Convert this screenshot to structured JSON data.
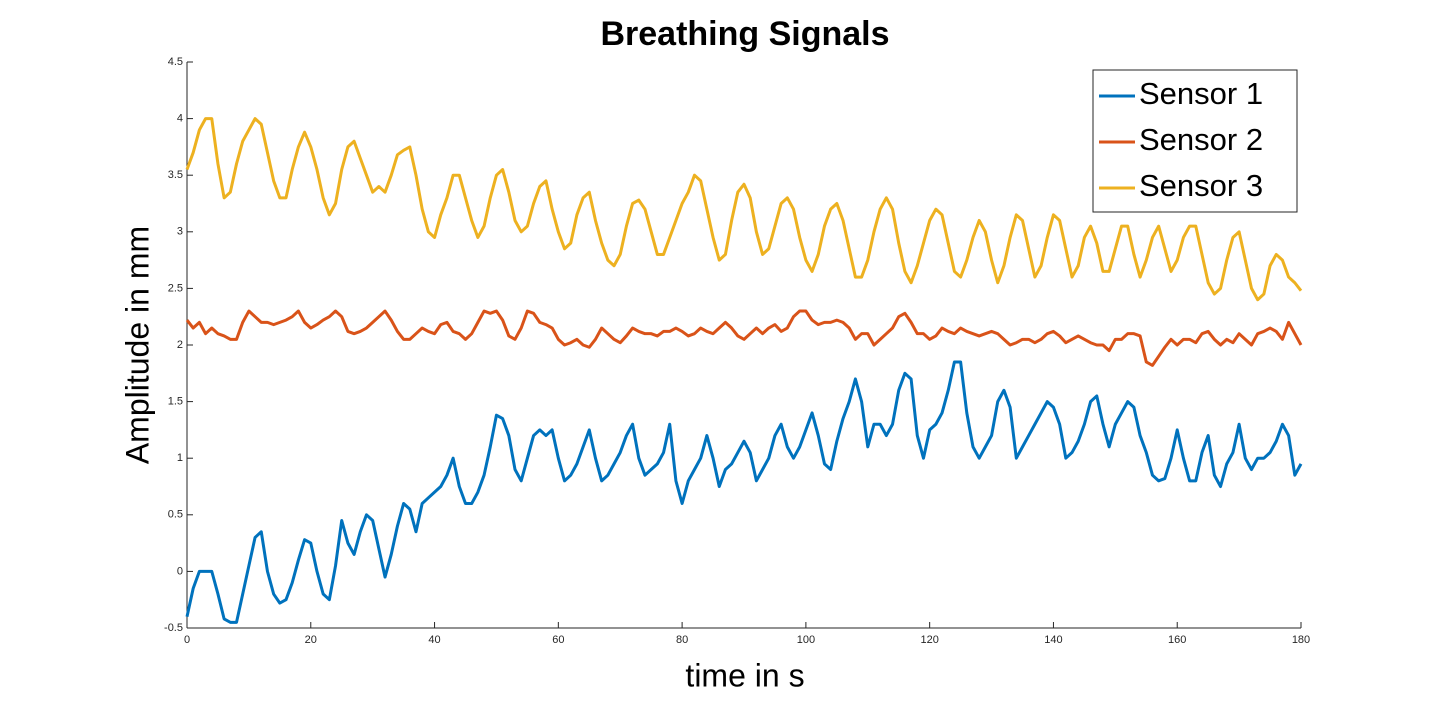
{
  "chart_data": {
    "type": "line",
    "title": "Breathing Signals",
    "x_label": "time in s",
    "y_label": "Amplitude in mm",
    "x": [
      0,
      1,
      2,
      3,
      4,
      5,
      6,
      7,
      8,
      9,
      10,
      11,
      12,
      13,
      14,
      15,
      16,
      17,
      18,
      19,
      20,
      21,
      22,
      23,
      24,
      25,
      26,
      27,
      28,
      29,
      30,
      31,
      32,
      33,
      34,
      35,
      36,
      37,
      38,
      39,
      40,
      41,
      42,
      43,
      44,
      45,
      46,
      47,
      48,
      49,
      50,
      51,
      52,
      53,
      54,
      55,
      56,
      57,
      58,
      59,
      60,
      61,
      62,
      63,
      64,
      65,
      66,
      67,
      68,
      69,
      70,
      71,
      72,
      73,
      74,
      75,
      76,
      77,
      78,
      79,
      80,
      81,
      82,
      83,
      84,
      85,
      86,
      87,
      88,
      89,
      90,
      91,
      92,
      93,
      94,
      95,
      96,
      97,
      98,
      99,
      100,
      101,
      102,
      103,
      104,
      105,
      106,
      107,
      108,
      109,
      110,
      111,
      112,
      113,
      114,
      115,
      116,
      117,
      118,
      119,
      120,
      121,
      122,
      123,
      124,
      125,
      126,
      127,
      128,
      129,
      130,
      131,
      132,
      133,
      134,
      135,
      136,
      137,
      138,
      139,
      140,
      141,
      142,
      143,
      144,
      145,
      146,
      147,
      148,
      149,
      150,
      151,
      152,
      153,
      154,
      155,
      156,
      157,
      158,
      159,
      160,
      161,
      162,
      163,
      164,
      165,
      166,
      167,
      168,
      169,
      170,
      171,
      172,
      173,
      174,
      175,
      176,
      177,
      178,
      179,
      180
    ],
    "series": [
      {
        "name": "Sensor 1",
        "color": "#0072bd",
        "values": [
          -0.4,
          -0.15,
          0.0,
          0.0,
          0.0,
          -0.2,
          -0.42,
          -0.45,
          -0.45,
          -0.2,
          0.05,
          0.3,
          0.35,
          0.0,
          -0.2,
          -0.28,
          -0.25,
          -0.1,
          0.1,
          0.28,
          0.25,
          0.0,
          -0.2,
          -0.25,
          0.05,
          0.45,
          0.25,
          0.15,
          0.35,
          0.5,
          0.45,
          0.2,
          -0.05,
          0.15,
          0.4,
          0.6,
          0.55,
          0.35,
          0.6,
          0.65,
          0.7,
          0.75,
          0.85,
          1.0,
          0.75,
          0.6,
          0.6,
          0.7,
          0.85,
          1.1,
          1.38,
          1.35,
          1.2,
          0.9,
          0.8,
          1.0,
          1.2,
          1.25,
          1.2,
          1.25,
          1.0,
          0.8,
          0.85,
          0.95,
          1.1,
          1.25,
          1.0,
          0.8,
          0.85,
          0.95,
          1.05,
          1.2,
          1.3,
          1.0,
          0.85,
          0.9,
          0.95,
          1.05,
          1.3,
          0.8,
          0.6,
          0.8,
          0.9,
          1.0,
          1.2,
          1.0,
          0.75,
          0.9,
          0.95,
          1.05,
          1.15,
          1.05,
          0.8,
          0.9,
          1.0,
          1.2,
          1.3,
          1.1,
          1.0,
          1.1,
          1.25,
          1.4,
          1.2,
          0.95,
          0.9,
          1.15,
          1.35,
          1.5,
          1.7,
          1.5,
          1.1,
          1.3,
          1.3,
          1.2,
          1.3,
          1.6,
          1.75,
          1.7,
          1.2,
          1.0,
          1.25,
          1.3,
          1.4,
          1.6,
          1.85,
          1.85,
          1.4,
          1.1,
          1.0,
          1.1,
          1.2,
          1.5,
          1.6,
          1.45,
          1.0,
          1.1,
          1.2,
          1.3,
          1.4,
          1.5,
          1.45,
          1.3,
          1.0,
          1.05,
          1.15,
          1.3,
          1.5,
          1.55,
          1.3,
          1.1,
          1.3,
          1.4,
          1.5,
          1.45,
          1.2,
          1.05,
          0.85,
          0.8,
          0.82,
          1.0,
          1.25,
          1.0,
          0.8,
          0.8,
          1.05,
          1.2,
          0.85,
          0.75,
          0.95,
          1.05,
          1.3,
          1.0,
          0.9,
          1.0,
          1.0,
          1.05,
          1.15,
          1.3,
          1.2,
          0.85,
          0.95
        ]
      },
      {
        "name": "Sensor 2",
        "color": "#d95319",
        "values": [
          2.22,
          2.15,
          2.2,
          2.1,
          2.15,
          2.1,
          2.08,
          2.05,
          2.05,
          2.2,
          2.3,
          2.25,
          2.2,
          2.2,
          2.18,
          2.2,
          2.22,
          2.25,
          2.3,
          2.2,
          2.15,
          2.18,
          2.22,
          2.25,
          2.3,
          2.25,
          2.12,
          2.1,
          2.12,
          2.15,
          2.2,
          2.25,
          2.3,
          2.22,
          2.12,
          2.05,
          2.05,
          2.1,
          2.15,
          2.12,
          2.1,
          2.18,
          2.2,
          2.12,
          2.1,
          2.05,
          2.1,
          2.2,
          2.3,
          2.28,
          2.3,
          2.22,
          2.08,
          2.05,
          2.15,
          2.3,
          2.28,
          2.2,
          2.18,
          2.15,
          2.05,
          2.0,
          2.02,
          2.05,
          2.0,
          1.98,
          2.05,
          2.15,
          2.1,
          2.05,
          2.02,
          2.08,
          2.15,
          2.12,
          2.1,
          2.1,
          2.08,
          2.12,
          2.12,
          2.15,
          2.12,
          2.08,
          2.1,
          2.15,
          2.12,
          2.1,
          2.15,
          2.2,
          2.15,
          2.08,
          2.05,
          2.1,
          2.15,
          2.1,
          2.15,
          2.18,
          2.12,
          2.15,
          2.25,
          2.3,
          2.3,
          2.22,
          2.18,
          2.2,
          2.2,
          2.22,
          2.2,
          2.15,
          2.05,
          2.1,
          2.1,
          2.0,
          2.05,
          2.1,
          2.15,
          2.25,
          2.28,
          2.2,
          2.1,
          2.1,
          2.05,
          2.08,
          2.15,
          2.12,
          2.1,
          2.15,
          2.12,
          2.1,
          2.08,
          2.1,
          2.12,
          2.1,
          2.05,
          2.0,
          2.02,
          2.05,
          2.05,
          2.02,
          2.05,
          2.1,
          2.12,
          2.08,
          2.02,
          2.05,
          2.08,
          2.05,
          2.02,
          2.0,
          2.0,
          1.95,
          2.05,
          2.05,
          2.1,
          2.1,
          2.08,
          1.85,
          1.82,
          1.9,
          1.98,
          2.05,
          2.0,
          2.05,
          2.05,
          2.02,
          2.1,
          2.12,
          2.05,
          2.0,
          2.05,
          2.02,
          2.1,
          2.05,
          2.0,
          2.1,
          2.12,
          2.15,
          2.12,
          2.05,
          2.2,
          2.1,
          2.0
        ]
      },
      {
        "name": "Sensor 3",
        "color": "#edb120",
        "values": [
          3.55,
          3.7,
          3.9,
          4.0,
          4.0,
          3.6,
          3.3,
          3.35,
          3.6,
          3.8,
          3.9,
          4.0,
          3.95,
          3.7,
          3.45,
          3.3,
          3.3,
          3.55,
          3.75,
          3.88,
          3.75,
          3.55,
          3.3,
          3.15,
          3.25,
          3.55,
          3.75,
          3.8,
          3.65,
          3.5,
          3.35,
          3.4,
          3.35,
          3.5,
          3.68,
          3.72,
          3.75,
          3.5,
          3.2,
          3.0,
          2.95,
          3.15,
          3.3,
          3.5,
          3.5,
          3.3,
          3.1,
          2.95,
          3.05,
          3.3,
          3.5,
          3.55,
          3.35,
          3.1,
          3.0,
          3.05,
          3.25,
          3.4,
          3.45,
          3.2,
          3.0,
          2.85,
          2.9,
          3.15,
          3.3,
          3.35,
          3.1,
          2.9,
          2.75,
          2.7,
          2.8,
          3.05,
          3.25,
          3.28,
          3.2,
          3.0,
          2.8,
          2.8,
          2.95,
          3.1,
          3.25,
          3.35,
          3.5,
          3.45,
          3.2,
          2.95,
          2.75,
          2.8,
          3.1,
          3.35,
          3.42,
          3.3,
          3.0,
          2.8,
          2.85,
          3.05,
          3.25,
          3.3,
          3.2,
          2.95,
          2.75,
          2.65,
          2.8,
          3.05,
          3.2,
          3.25,
          3.1,
          2.85,
          2.6,
          2.6,
          2.75,
          3.0,
          3.2,
          3.3,
          3.2,
          2.9,
          2.65,
          2.55,
          2.7,
          2.9,
          3.1,
          3.2,
          3.15,
          2.9,
          2.65,
          2.6,
          2.75,
          2.95,
          3.1,
          3.0,
          2.75,
          2.55,
          2.7,
          2.95,
          3.15,
          3.1,
          2.85,
          2.6,
          2.7,
          2.95,
          3.15,
          3.1,
          2.85,
          2.6,
          2.7,
          2.95,
          3.05,
          2.9,
          2.65,
          2.65,
          2.85,
          3.05,
          3.05,
          2.8,
          2.6,
          2.75,
          2.95,
          3.05,
          2.85,
          2.65,
          2.75,
          2.95,
          3.05,
          3.05,
          2.8,
          2.55,
          2.45,
          2.5,
          2.75,
          2.95,
          3.0,
          2.75,
          2.5,
          2.4,
          2.45,
          2.7,
          2.8,
          2.75,
          2.6,
          2.55,
          2.48
        ]
      }
    ],
    "xlim": [
      0,
      180
    ],
    "xticks": [
      0,
      20,
      40,
      60,
      80,
      100,
      120,
      140,
      160,
      180
    ],
    "ylim": [
      -0.5,
      4.5
    ],
    "yticks": [
      -0.5,
      0,
      0.5,
      1,
      1.5,
      2,
      2.5,
      3,
      3.5,
      4,
      4.5
    ],
    "grid": false,
    "legend": "top-right"
  }
}
